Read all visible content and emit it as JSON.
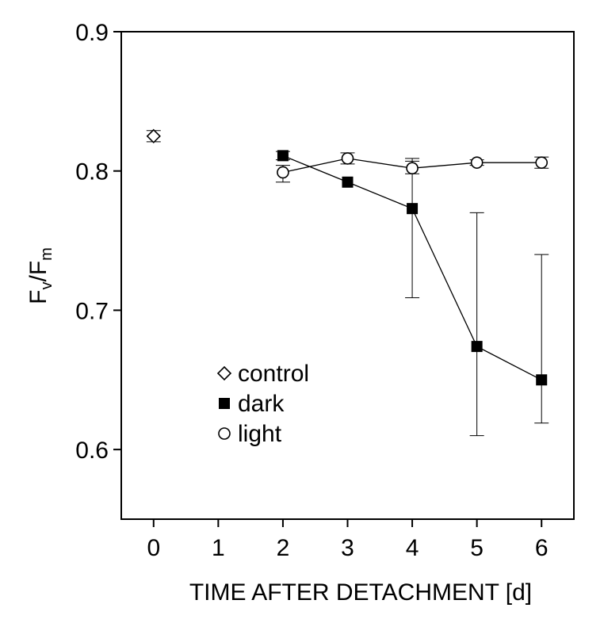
{
  "chart_data": {
    "type": "scatter",
    "title": "",
    "xlabel": "TIME AFTER DETACHMENT [d]",
    "ylabel": {
      "main": "F",
      "sub1": "v",
      "slash": "/F",
      "sub2": "m"
    },
    "xlim": [
      -0.5,
      6.5
    ],
    "ylim": [
      0.55,
      0.9
    ],
    "x_ticks": [
      "0",
      "1",
      "2",
      "3",
      "4",
      "5",
      "6"
    ],
    "y_ticks": [
      "0.6",
      "0.7",
      "0.8",
      "0.9"
    ],
    "grid": false,
    "legend_position": "lower-left",
    "series": [
      {
        "name": "control",
        "marker": "diamond-open",
        "connected": false,
        "points": [
          {
            "x": 0,
            "y": 0.825,
            "err_low": 0.004,
            "err_high": 0.004
          }
        ]
      },
      {
        "name": "dark",
        "marker": "square-filled",
        "connected": true,
        "points": [
          {
            "x": 2,
            "y": 0.811,
            "err_low": 0.003,
            "err_high": 0.003
          },
          {
            "x": 3,
            "y": 0.792,
            "err_low": 0.0,
            "err_high": 0.0
          },
          {
            "x": 4,
            "y": 0.773,
            "err_low": 0.064,
            "err_high": 0.034
          },
          {
            "x": 5,
            "y": 0.674,
            "err_low": 0.064,
            "err_high": 0.096
          },
          {
            "x": 6,
            "y": 0.65,
            "err_low": 0.031,
            "err_high": 0.09
          }
        ]
      },
      {
        "name": "light",
        "marker": "circle-open",
        "connected": true,
        "points": [
          {
            "x": 2,
            "y": 0.799,
            "err_low": 0.007,
            "err_high": 0.005
          },
          {
            "x": 3,
            "y": 0.809,
            "err_low": 0.004,
            "err_high": 0.004
          },
          {
            "x": 4,
            "y": 0.802,
            "err_low": 0.004,
            "err_high": 0.007
          },
          {
            "x": 5,
            "y": 0.806,
            "err_low": 0.002,
            "err_high": 0.002
          },
          {
            "x": 6,
            "y": 0.806,
            "err_low": 0.004,
            "err_high": 0.004
          }
        ]
      }
    ]
  }
}
